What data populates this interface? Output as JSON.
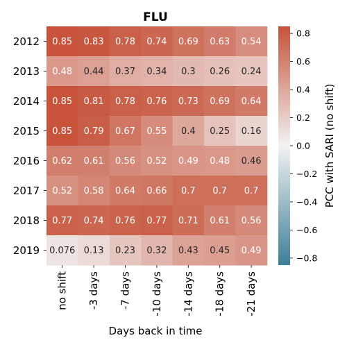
{
  "chart_data": {
    "type": "heatmap",
    "title": "FLU",
    "xlabel": "Days back in time",
    "colorbar_label": "PCC with SARI (no shift)",
    "x_categories": [
      "no shift",
      "-3 days",
      "-7 days",
      "-10 days",
      "-14 days",
      "-18 days",
      "-21 days"
    ],
    "y_categories": [
      "2012",
      "2013",
      "2014",
      "2015",
      "2016",
      "2017",
      "2018",
      "2019"
    ],
    "values": [
      [
        0.85,
        0.83,
        0.78,
        0.74,
        0.69,
        0.63,
        0.54
      ],
      [
        0.48,
        0.44,
        0.37,
        0.34,
        0.3,
        0.26,
        0.24
      ],
      [
        0.85,
        0.81,
        0.78,
        0.76,
        0.73,
        0.69,
        0.64
      ],
      [
        0.85,
        0.79,
        0.67,
        0.55,
        0.4,
        0.25,
        0.16
      ],
      [
        0.62,
        0.61,
        0.56,
        0.52,
        0.49,
        0.48,
        0.46
      ],
      [
        0.52,
        0.58,
        0.64,
        0.66,
        0.7,
        0.7,
        0.7
      ],
      [
        0.77,
        0.74,
        0.76,
        0.77,
        0.71,
        0.61,
        0.56
      ],
      [
        0.076,
        0.13,
        0.23,
        0.32,
        0.43,
        0.45,
        0.49
      ]
    ],
    "value_labels": [
      [
        "0.85",
        "0.83",
        "0.78",
        "0.74",
        "0.69",
        "0.63",
        "0.54"
      ],
      [
        "0.48",
        "0.44",
        "0.37",
        "0.34",
        "0.3",
        "0.26",
        "0.24"
      ],
      [
        "0.85",
        "0.81",
        "0.78",
        "0.76",
        "0.73",
        "0.69",
        "0.64"
      ],
      [
        "0.85",
        "0.79",
        "0.67",
        "0.55",
        "0.4",
        "0.25",
        "0.16"
      ],
      [
        "0.62",
        "0.61",
        "0.56",
        "0.52",
        "0.49",
        "0.48",
        "0.46"
      ],
      [
        "0.52",
        "0.58",
        "0.64",
        "0.66",
        "0.7",
        "0.7",
        "0.7"
      ],
      [
        "0.77",
        "0.74",
        "0.76",
        "0.77",
        "0.71",
        "0.61",
        "0.56"
      ],
      [
        "0.076",
        "0.13",
        "0.23",
        "0.32",
        "0.43",
        "0.45",
        "0.49"
      ]
    ],
    "color_range": [
      -0.85,
      0.85
    ],
    "colorbar_ticks": [
      "0.8",
      "0.6",
      "0.4",
      "0.2",
      "0.0",
      "−0.2",
      "−0.4",
      "−0.6",
      "−0.8"
    ],
    "colorbar_tick_values": [
      0.8,
      0.6,
      0.4,
      0.2,
      0.0,
      -0.2,
      -0.4,
      -0.6,
      -0.8
    ],
    "colors": {
      "negative_end": "#3d7f99",
      "center": "#f2f2f2",
      "positive_end": "#c6533a"
    }
  }
}
